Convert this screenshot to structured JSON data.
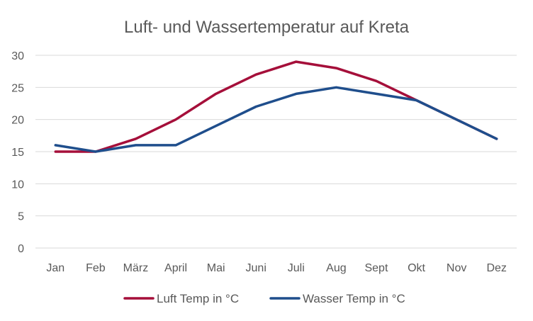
{
  "chart_data": {
    "type": "line",
    "title": "Luft- und Wassertemperatur auf Kreta",
    "categories": [
      "Jan",
      "Feb",
      "März",
      "April",
      "Mai",
      "Juni",
      "Juli",
      "Aug",
      "Sept",
      "Okt",
      "Nov",
      "Dez"
    ],
    "series": [
      {
        "name": "Luft Temp in °C",
        "color": "#a50f3a",
        "values": [
          15,
          15,
          17,
          20,
          24,
          27,
          29,
          28,
          26,
          23,
          20,
          17
        ]
      },
      {
        "name": "Wasser Temp in °C",
        "color": "#1f4e8c",
        "values": [
          16,
          15,
          16,
          16,
          19,
          22,
          24,
          25,
          24,
          23,
          20,
          17
        ]
      }
    ],
    "ylim": [
      0,
      30
    ],
    "yticks": [
      0,
      5,
      10,
      15,
      20,
      25,
      30
    ],
    "grid": true,
    "legend_position": "bottom"
  }
}
